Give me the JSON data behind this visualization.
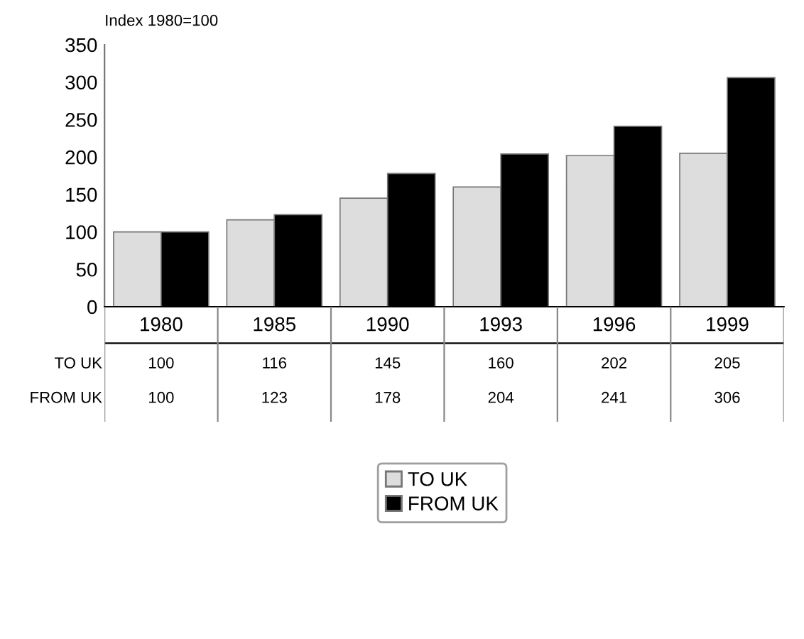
{
  "chart_data": {
    "type": "bar",
    "title": "Index 1980=100",
    "categories": [
      "1980",
      "1985",
      "1990",
      "1993",
      "1996",
      "1999"
    ],
    "series": [
      {
        "name": "TO UK",
        "color": "#dddddd",
        "values": [
          100,
          116,
          145,
          160,
          202,
          205
        ]
      },
      {
        "name": "FROM UK",
        "color": "#000000",
        "values": [
          100,
          123,
          178,
          204,
          241,
          306
        ]
      }
    ],
    "ylim": [
      0,
      350
    ],
    "yticks": [
      0,
      50,
      100,
      150,
      200,
      250,
      300,
      350
    ],
    "data_labels": true,
    "grid": false,
    "legend": "bottom"
  }
}
